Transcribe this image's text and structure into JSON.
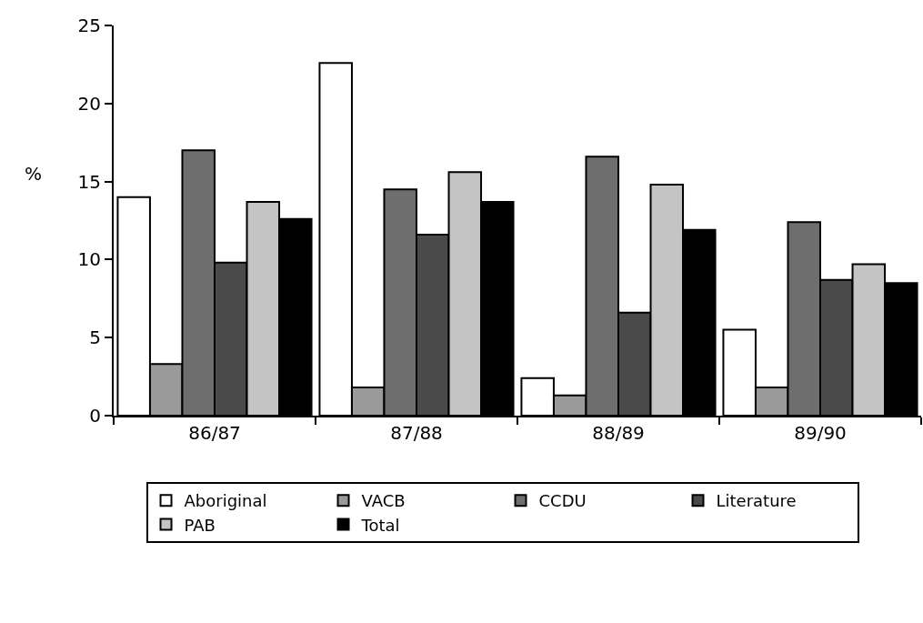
{
  "chart_data": {
    "type": "bar",
    "ylabel": "%",
    "categories": [
      "86/87",
      "87/88",
      "88/89",
      "89/90"
    ],
    "series": [
      {
        "name": "Aboriginal",
        "color": "#ffffff",
        "values": [
          14.0,
          22.6,
          2.4,
          5.5
        ]
      },
      {
        "name": "VACB",
        "color": "#9a9a9a",
        "values": [
          3.3,
          1.8,
          1.3,
          1.8
        ]
      },
      {
        "name": "CCDU",
        "color": "#6e6e6e",
        "values": [
          17.0,
          14.5,
          16.6,
          12.4
        ]
      },
      {
        "name": "Literature",
        "color": "#4a4a4a",
        "values": [
          9.8,
          11.6,
          6.6,
          8.7
        ]
      },
      {
        "name": "PAB",
        "color": "#c4c4c4",
        "values": [
          13.7,
          15.6,
          14.8,
          9.7
        ]
      },
      {
        "name": "Total",
        "color": "#000000",
        "values": [
          12.6,
          13.7,
          11.9,
          8.5
        ]
      }
    ],
    "ylim": [
      0,
      25
    ],
    "yticks": [
      0,
      5,
      10,
      15,
      20,
      25
    ],
    "legend": "bottom"
  }
}
